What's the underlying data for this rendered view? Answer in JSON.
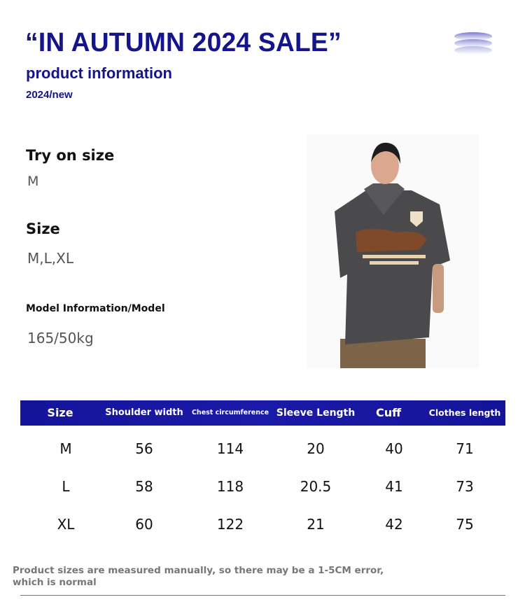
{
  "header": {
    "title": "“IN AUTUMN 2024 SALE”",
    "subtitle": "product information",
    "year_tag": "2024/new"
  },
  "info": {
    "try_on_label": "Try on size",
    "try_on_value": "M",
    "size_label": "Size",
    "size_value": "M,L,XL",
    "model_label": "Model Information/Model",
    "model_value": "165/50kg"
  },
  "colors": {
    "accent": "#14148c",
    "table_header": "#1616a0"
  },
  "table": {
    "headers": [
      "Size",
      "Shoulder width",
      "Chest circumference",
      "Sleeve Length",
      "Cuff",
      "Clothes length"
    ],
    "rows": [
      [
        "M",
        "56",
        "114",
        "20",
        "40",
        "71"
      ],
      [
        "L",
        "58",
        "118",
        "20.5",
        "41",
        "73"
      ],
      [
        "XL",
        "60",
        "122",
        "21",
        "42",
        "75"
      ]
    ]
  },
  "note": "Product sizes are measured manually, so there may be a 1-5CM error, which is normal"
}
